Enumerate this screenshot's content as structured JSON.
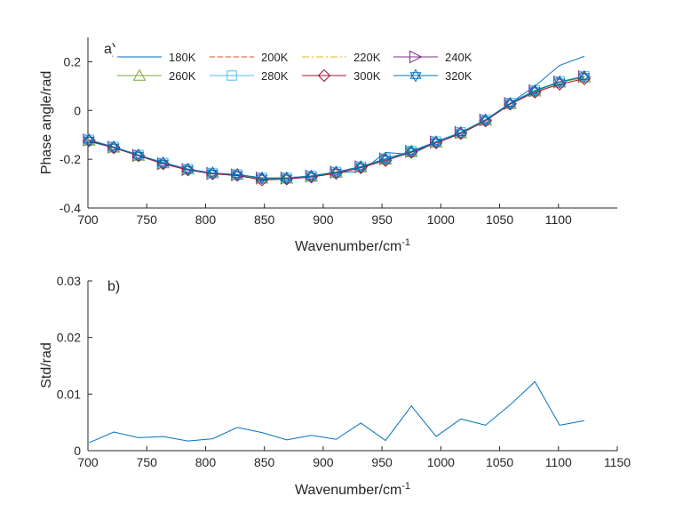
{
  "colors": {
    "axis": "#262626",
    "series": [
      "#0072BD",
      "#D95319",
      "#EDB120",
      "#7E2F8E",
      "#77AC30",
      "#4DBEEE",
      "#A2142F",
      "#0072BD"
    ]
  },
  "chart_data": [
    {
      "type": "line",
      "panel_label": "a)",
      "xlabel": "Wavenumber/cm",
      "xlabel_sup": "-1",
      "ylabel": "Phase angle/rad",
      "xlim": [
        700,
        1150
      ],
      "ylim": [
        -0.4,
        0.3
      ],
      "xticks": [
        700,
        750,
        800,
        850,
        900,
        950,
        1000,
        1050,
        1100
      ],
      "yticks": [
        -0.4,
        -0.2,
        0,
        0.2
      ],
      "ytick_labels": [
        "-0.4",
        "-0.2",
        "0",
        "0.2"
      ],
      "grid": false,
      "legend_position": "top-left, 4 columns",
      "x": [
        701,
        722,
        743,
        764,
        785,
        806,
        827,
        848,
        869,
        890,
        911,
        932,
        953,
        975,
        996,
        1017,
        1038,
        1059,
        1080,
        1101,
        1122
      ],
      "series": [
        {
          "name": "180K",
          "marker": "none",
          "values": [
            -0.127,
            -0.153,
            -0.183,
            -0.213,
            -0.24,
            -0.258,
            -0.268,
            -0.282,
            -0.278,
            -0.27,
            -0.255,
            -0.25,
            -0.172,
            -0.18,
            -0.13,
            -0.092,
            -0.042,
            0.03,
            0.1,
            0.185,
            0.222
          ]
        },
        {
          "name": "200K",
          "marker": "none",
          "values": [
            -0.12,
            -0.15,
            -0.182,
            -0.216,
            -0.242,
            -0.258,
            -0.263,
            -0.276,
            -0.276,
            -0.268,
            -0.252,
            -0.23,
            -0.198,
            -0.168,
            -0.128,
            -0.09,
            -0.038,
            0.03,
            0.08,
            0.118,
            0.135
          ]
        },
        {
          "name": "220K",
          "marker": "none",
          "values": [
            -0.122,
            -0.151,
            -0.183,
            -0.217,
            -0.243,
            -0.259,
            -0.265,
            -0.278,
            -0.278,
            -0.27,
            -0.254,
            -0.232,
            -0.2,
            -0.17,
            -0.13,
            -0.092,
            -0.04,
            0.028,
            0.082,
            0.116,
            0.137
          ]
        },
        {
          "name": "240K",
          "marker": "triangle-right",
          "values": [
            -0.121,
            -0.15,
            -0.184,
            -0.218,
            -0.242,
            -0.258,
            -0.264,
            -0.277,
            -0.277,
            -0.269,
            -0.253,
            -0.231,
            -0.199,
            -0.168,
            -0.129,
            -0.09,
            -0.039,
            0.029,
            0.081,
            0.117,
            0.139
          ]
        },
        {
          "name": "260K",
          "marker": "triangle-up",
          "values": [
            -0.123,
            -0.152,
            -0.185,
            -0.216,
            -0.241,
            -0.257,
            -0.264,
            -0.279,
            -0.279,
            -0.271,
            -0.255,
            -0.233,
            -0.201,
            -0.171,
            -0.131,
            -0.093,
            -0.041,
            0.027,
            0.079,
            0.115,
            0.136
          ]
        },
        {
          "name": "280K",
          "marker": "square",
          "values": [
            -0.12,
            -0.149,
            -0.182,
            -0.215,
            -0.24,
            -0.256,
            -0.262,
            -0.276,
            -0.276,
            -0.268,
            -0.252,
            -0.23,
            -0.197,
            -0.166,
            -0.127,
            -0.089,
            -0.037,
            0.031,
            0.083,
            0.119,
            0.141
          ]
        },
        {
          "name": "300K",
          "marker": "diamond",
          "values": [
            -0.124,
            -0.153,
            -0.186,
            -0.219,
            -0.244,
            -0.26,
            -0.266,
            -0.285,
            -0.281,
            -0.273,
            -0.258,
            -0.235,
            -0.205,
            -0.172,
            -0.133,
            -0.095,
            -0.043,
            0.026,
            0.075,
            0.108,
            0.13
          ]
        },
        {
          "name": "320K",
          "marker": "hexagram",
          "values": [
            -0.121,
            -0.15,
            -0.183,
            -0.216,
            -0.241,
            -0.257,
            -0.263,
            -0.277,
            -0.277,
            -0.269,
            -0.253,
            -0.231,
            -0.199,
            -0.168,
            -0.129,
            -0.091,
            -0.039,
            0.029,
            0.081,
            0.117,
            0.139
          ]
        }
      ]
    },
    {
      "type": "line",
      "panel_label": "b)",
      "xlabel": "Wavenumber/cm",
      "xlabel_sup": "-1",
      "ylabel": "Std/rad",
      "xlim": [
        700,
        1150
      ],
      "ylim": [
        0,
        0.03
      ],
      "xticks": [
        700,
        750,
        800,
        850,
        900,
        950,
        1000,
        1050,
        1100,
        1150
      ],
      "yticks": [
        0,
        0.01,
        0.02,
        0.03
      ],
      "ytick_labels": [
        "0",
        "0.01",
        "0.02",
        "0.03"
      ],
      "grid": false,
      "x": [
        701,
        722,
        743,
        764,
        785,
        806,
        827,
        848,
        869,
        890,
        911,
        932,
        953,
        975,
        996,
        1017,
        1038,
        1059,
        1080,
        1101,
        1122
      ],
      "series": [
        {
          "values": [
            0.0014,
            0.0033,
            0.0023,
            0.0025,
            0.0017,
            0.0021,
            0.0041,
            0.0032,
            0.0019,
            0.0027,
            0.002,
            0.0049,
            0.0018,
            0.0079,
            0.0025,
            0.0056,
            0.0045,
            0.0081,
            0.0122,
            0.0045,
            0.0053
          ]
        }
      ]
    }
  ]
}
